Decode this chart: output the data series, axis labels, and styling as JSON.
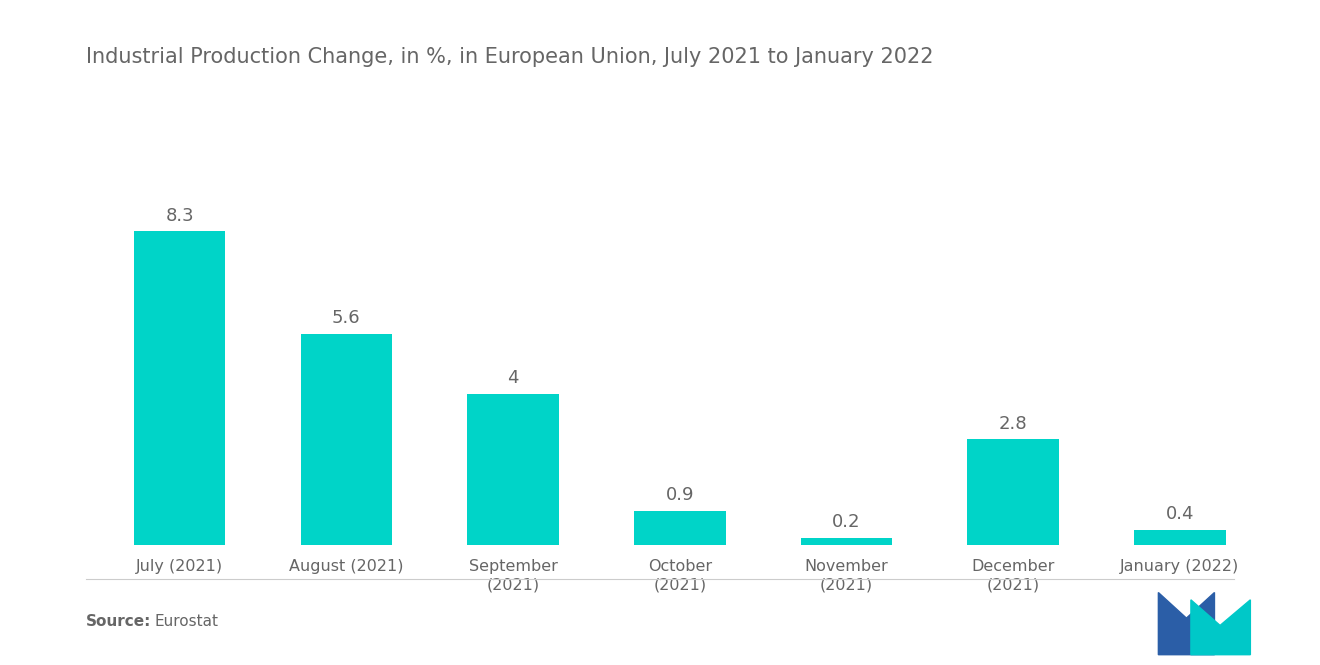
{
  "title": "Industrial Production Change, in %, in European Union, July 2021 to January 2022",
  "categories": [
    "July (2021)",
    "August (2021)",
    "September\n(2021)",
    "October\n(2021)",
    "November\n(2021)",
    "December\n(2021)",
    "January (2022)"
  ],
  "values": [
    8.3,
    5.6,
    4.0,
    0.9,
    0.2,
    2.8,
    0.4
  ],
  "bar_color": "#00D4C8",
  "background_color": "#ffffff",
  "title_color": "#666666",
  "label_color": "#666666",
  "source_bold": "Source:",
  "source_normal": "  Eurostat",
  "title_fontsize": 15,
  "value_fontsize": 13,
  "tick_fontsize": 11.5,
  "source_fontsize": 11,
  "ylim": [
    0,
    10.2
  ],
  "bar_width": 0.55,
  "logo_blue": "#2B5EA7",
  "logo_teal": "#00C8C8"
}
